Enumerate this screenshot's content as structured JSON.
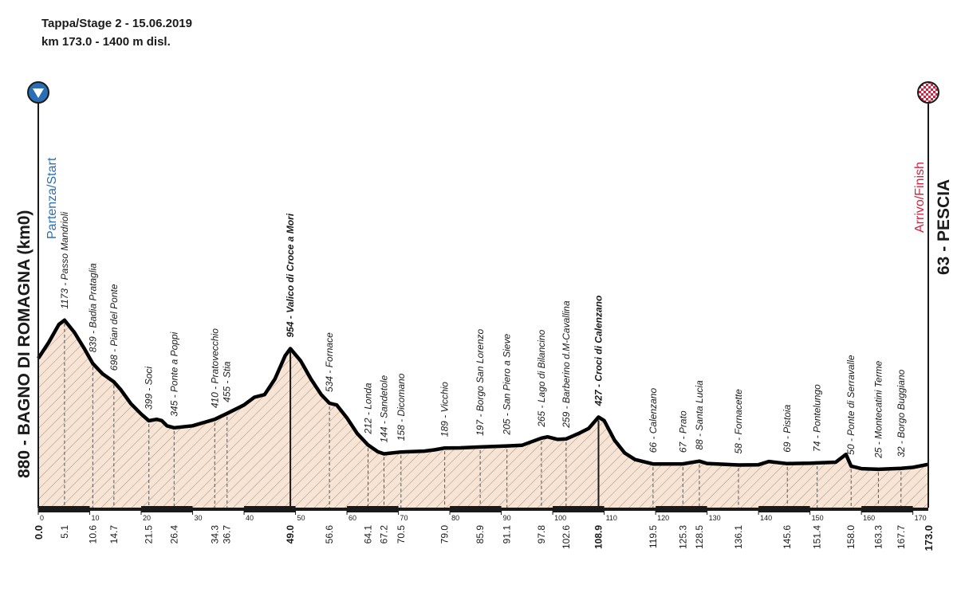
{
  "chart_data": {
    "type": "profile",
    "title": "Tappa/Stage 2 - 15.06.2019",
    "subtitle": "km 173.0 - 1400 m disl.",
    "start": {
      "name": "880 - BAGNO DI ROMAGNA (km0)",
      "label": "Partenza/Start",
      "km": {
        "value": 0,
        "label": "0.0"
      }
    },
    "finish": {
      "name": "63 - PESCIA",
      "label": "Arrivo/Finish",
      "km": {
        "value": 173,
        "label": "173.0"
      }
    },
    "xlim": [
      0,
      173
    ],
    "xticks": [
      0,
      10,
      20,
      30,
      40,
      50,
      60,
      70,
      80,
      90,
      100,
      110,
      120,
      130,
      140,
      150,
      160,
      170
    ],
    "x": [
      0,
      2,
      4,
      5.1,
      7,
      9,
      10.6,
      12.5,
      14.7,
      16,
      18,
      20,
      21.5,
      23,
      24,
      25,
      26.4,
      30,
      34.3,
      36.7,
      40,
      42,
      44,
      46,
      48,
      49,
      51,
      53,
      55,
      56.6,
      58,
      60,
      62,
      64.1,
      66,
      67.2,
      70.5,
      75,
      77,
      79,
      82,
      85.9,
      91.1,
      94,
      97.8,
      99,
      101,
      102.6,
      105,
      107,
      108.9,
      110,
      112,
      114,
      116,
      119.5,
      125.3,
      128.5,
      130,
      136.1,
      140,
      142,
      145.6,
      150,
      151.4,
      155,
      157,
      158,
      160,
      163.3,
      167.7,
      170,
      173
    ],
    "values": [
      880,
      1000,
      1140,
      1173,
      1080,
      950,
      839,
      760,
      698,
      640,
      530,
      450,
      399,
      410,
      400,
      360,
      345,
      360,
      410,
      455,
      520,
      580,
      600,
      720,
      900,
      954,
      860,
      720,
      600,
      534,
      520,
      420,
      300,
      212,
      160,
      144,
      158,
      165,
      175,
      189,
      190,
      197,
      205,
      210,
      265,
      275,
      255,
      259,
      300,
      340,
      427,
      400,
      250,
      150,
      100,
      66,
      67,
      88,
      70,
      58,
      60,
      85,
      69,
      72,
      74,
      80,
      140,
      50,
      30,
      25,
      32,
      40,
      63
    ],
    "color": "#000000",
    "fill": "#f7e4d4",
    "waypoints": [
      {
        "km": 5.1,
        "label": "1173 - Passo Mandrioli"
      },
      {
        "km": 10.6,
        "label": "839 - Badia Prataglia"
      },
      {
        "km": 14.7,
        "label": "698 - Pian del Ponte"
      },
      {
        "km": 21.5,
        "label": "399 - Soci"
      },
      {
        "km": 26.4,
        "label": "345 - Ponte a Poppi"
      },
      {
        "km": 34.3,
        "label": "410 - Pratovecchio"
      },
      {
        "km": 36.7,
        "label": "455 - Stia"
      },
      {
        "km": {
          "value": 49,
          "label": "49.0"
        },
        "label": "954 - Valico di Croce a Mori",
        "emphasis": true
      },
      {
        "km": 56.6,
        "label": "534 - Fornace"
      },
      {
        "km": 64.1,
        "label": "212 - Londa"
      },
      {
        "km": 67.2,
        "label": "144 - Sandetole"
      },
      {
        "km": 70.5,
        "label": "158 - Dicomano"
      },
      {
        "km": {
          "value": 79,
          "label": "79.0"
        },
        "label": "189 - Vicchio"
      },
      {
        "km": 85.9,
        "label": "197 - Borgo San Lorenzo"
      },
      {
        "km": 91.1,
        "label": "205 - San Piero a Sieve"
      },
      {
        "km": 97.8,
        "label": "265 - Lago di Bilancino"
      },
      {
        "km": 102.6,
        "label": "259 - Barberino d.M-Cavallina"
      },
      {
        "km": 108.9,
        "label": "427 - Croci di Calenzano",
        "emphasis": true
      },
      {
        "km": 119.5,
        "label": "66 - Calenzano"
      },
      {
        "km": 125.3,
        "label": "67 - Prato"
      },
      {
        "km": 128.5,
        "label": "88 - Santa Lucia"
      },
      {
        "km": 136.1,
        "label": "58 - Fornacette"
      },
      {
        "km": 145.6,
        "label": "69 - Pistoia"
      },
      {
        "km": 151.4,
        "label": "74 - Pontelungo"
      },
      {
        "km": {
          "value": 158,
          "label": "158.0"
        },
        "label": "50 - Ponte di Serravalle"
      },
      {
        "km": 163.3,
        "label": "25 - Montecatini Terme"
      },
      {
        "km": 167.7,
        "label": "32 - Borgo Buggiano"
      }
    ]
  }
}
